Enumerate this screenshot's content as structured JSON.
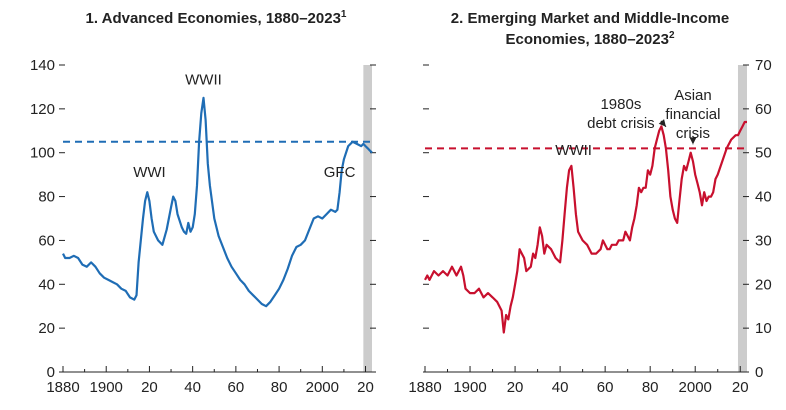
{
  "chart_data": [
    {
      "type": "line",
      "title": "1. Advanced Economies, 1880–2023",
      "title_sup": "1",
      "xlabel": "",
      "ylabel": "",
      "xlim": [
        1880,
        2023
      ],
      "ylim": [
        0,
        140
      ],
      "x_ticks": [
        1880,
        1900,
        1920,
        1940,
        1960,
        1980,
        2000,
        2020
      ],
      "x_tick_labels": [
        "1880",
        "1900",
        "20",
        "40",
        "60",
        "80",
        "2000",
        "20"
      ],
      "y_ticks": [
        0,
        20,
        40,
        60,
        80,
        100,
        120,
        140
      ],
      "y_tick_labels": [
        "0",
        "20",
        "40",
        "60",
        "80",
        "100",
        "120",
        "140"
      ],
      "y_axis": "left",
      "grid": false,
      "line_color": "#1f6db5",
      "reference_line": {
        "value": 105,
        "color": "#1f6db5",
        "style": "dashed"
      },
      "shaded_region": {
        "from": 2019,
        "to": 2023,
        "color": "#cccccc"
      },
      "annotations": [
        {
          "text": "WWI",
          "x": 1920,
          "y": 89
        },
        {
          "text": "WWII",
          "x": 1945,
          "y": 131
        },
        {
          "text": "GFC",
          "x": 2008,
          "y": 89
        }
      ],
      "series": [
        {
          "values": [
            [
              1880,
              54
            ],
            [
              1881,
              52
            ],
            [
              1883,
              52
            ],
            [
              1885,
              53
            ],
            [
              1887,
              52
            ],
            [
              1889,
              49
            ],
            [
              1891,
              48
            ],
            [
              1893,
              50
            ],
            [
              1895,
              48
            ],
            [
              1897,
              45
            ],
            [
              1899,
              43
            ],
            [
              1901,
              42
            ],
            [
              1903,
              41
            ],
            [
              1905,
              40
            ],
            [
              1907,
              38
            ],
            [
              1909,
              37
            ],
            [
              1911,
              34
            ],
            [
              1913,
              33
            ],
            [
              1914,
              35
            ],
            [
              1915,
              50
            ],
            [
              1916,
              60
            ],
            [
              1917,
              70
            ],
            [
              1918,
              78
            ],
            [
              1919,
              82
            ],
            [
              1920,
              78
            ],
            [
              1921,
              70
            ],
            [
              1922,
              64
            ],
            [
              1924,
              60
            ],
            [
              1926,
              58
            ],
            [
              1928,
              65
            ],
            [
              1930,
              75
            ],
            [
              1931,
              80
            ],
            [
              1932,
              78
            ],
            [
              1933,
              72
            ],
            [
              1935,
              66
            ],
            [
              1936,
              64
            ],
            [
              1937,
              63
            ],
            [
              1938,
              68
            ],
            [
              1939,
              64
            ],
            [
              1940,
              66
            ],
            [
              1941,
              72
            ],
            [
              1942,
              85
            ],
            [
              1943,
              105
            ],
            [
              1944,
              118
            ],
            [
              1945,
              125
            ],
            [
              1946,
              115
            ],
            [
              1947,
              95
            ],
            [
              1948,
              85
            ],
            [
              1950,
              70
            ],
            [
              1952,
              62
            ],
            [
              1954,
              57
            ],
            [
              1956,
              52
            ],
            [
              1958,
              48
            ],
            [
              1960,
              45
            ],
            [
              1962,
              42
            ],
            [
              1964,
              40
            ],
            [
              1966,
              37
            ],
            [
              1968,
              35
            ],
            [
              1970,
              33
            ],
            [
              1972,
              31
            ],
            [
              1974,
              30
            ],
            [
              1976,
              32
            ],
            [
              1978,
              35
            ],
            [
              1980,
              38
            ],
            [
              1982,
              42
            ],
            [
              1984,
              47
            ],
            [
              1986,
              53
            ],
            [
              1988,
              57
            ],
            [
              1990,
              58
            ],
            [
              1992,
              60
            ],
            [
              1994,
              65
            ],
            [
              1996,
              70
            ],
            [
              1998,
              71
            ],
            [
              2000,
              70
            ],
            [
              2002,
              72
            ],
            [
              2004,
              74
            ],
            [
              2006,
              73
            ],
            [
              2007,
              74
            ],
            [
              2008,
              82
            ],
            [
              2009,
              92
            ],
            [
              2010,
              97
            ],
            [
              2012,
              103
            ],
            [
              2014,
              105
            ],
            [
              2016,
              104
            ],
            [
              2018,
              103
            ],
            [
              2019,
              104
            ],
            [
              2020,
              103
            ],
            [
              2021,
              102
            ],
            [
              2022,
              101
            ],
            [
              2023,
              100
            ]
          ]
        }
      ]
    },
    {
      "type": "line",
      "title": "2. Emerging Market and Middle-Income Economies, 1880–2023",
      "title_line1": "2. Emerging Market and Middle-Income",
      "title_line2": "Economies, 1880–2023",
      "title_sup": "2",
      "xlabel": "",
      "ylabel": "",
      "xlim": [
        1880,
        2023
      ],
      "ylim": [
        0,
        70
      ],
      "x_ticks": [
        1880,
        1900,
        1920,
        1940,
        1960,
        1980,
        2000,
        2020
      ],
      "x_tick_labels": [
        "1880",
        "1900",
        "20",
        "40",
        "60",
        "80",
        "2000",
        "20"
      ],
      "y_ticks": [
        0,
        10,
        20,
        30,
        40,
        50,
        60,
        70
      ],
      "y_tick_labels": [
        "0",
        "10",
        "20",
        "30",
        "40",
        "50",
        "60",
        "70"
      ],
      "y_axis": "right",
      "grid": false,
      "line_color": "#c8102e",
      "reference_line": {
        "value": 51,
        "color": "#c8102e",
        "style": "dashed"
      },
      "shaded_region": {
        "from": 2019,
        "to": 2023,
        "color": "#cccccc"
      },
      "annotations": [
        {
          "text": "WWII",
          "x": 1946,
          "y": 49.5,
          "lines": [
            "WWII"
          ]
        },
        {
          "text": "1980s debt crisis",
          "x": 1967,
          "y": 60,
          "lines": [
            "1980s",
            "debt crisis"
          ],
          "arrow_to": [
            1987,
            55
          ]
        },
        {
          "text": "Asian financial crisis",
          "x": 1999,
          "y": 62,
          "lines": [
            "Asian",
            "financial",
            "crisis"
          ],
          "arrow_to": [
            1999,
            51
          ]
        }
      ],
      "series": [
        {
          "values": [
            [
              1880,
              21
            ],
            [
              1881,
              22
            ],
            [
              1882,
              21
            ],
            [
              1884,
              23
            ],
            [
              1886,
              22
            ],
            [
              1888,
              23
            ],
            [
              1890,
              22
            ],
            [
              1892,
              24
            ],
            [
              1894,
              22
            ],
            [
              1896,
              24
            ],
            [
              1897,
              22
            ],
            [
              1898,
              19
            ],
            [
              1900,
              18
            ],
            [
              1902,
              18
            ],
            [
              1904,
              19
            ],
            [
              1906,
              17
            ],
            [
              1908,
              18
            ],
            [
              1910,
              17
            ],
            [
              1912,
              16
            ],
            [
              1914,
              14
            ],
            [
              1915,
              9
            ],
            [
              1916,
              13
            ],
            [
              1917,
              12
            ],
            [
              1918,
              15
            ],
            [
              1919,
              17
            ],
            [
              1920,
              20
            ],
            [
              1921,
              23
            ],
            [
              1922,
              28
            ],
            [
              1923,
              27
            ],
            [
              1924,
              26
            ],
            [
              1925,
              23
            ],
            [
              1927,
              24
            ],
            [
              1928,
              27
            ],
            [
              1929,
              26
            ],
            [
              1930,
              29
            ],
            [
              1931,
              33
            ],
            [
              1932,
              31
            ],
            [
              1933,
              27
            ],
            [
              1934,
              29
            ],
            [
              1936,
              28
            ],
            [
              1938,
              26
            ],
            [
              1940,
              25
            ],
            [
              1941,
              30
            ],
            [
              1942,
              36
            ],
            [
              1943,
              42
            ],
            [
              1944,
              46
            ],
            [
              1945,
              47
            ],
            [
              1946,
              42
            ],
            [
              1947,
              36
            ],
            [
              1948,
              32
            ],
            [
              1950,
              30
            ],
            [
              1952,
              29
            ],
            [
              1953,
              28
            ],
            [
              1954,
              27
            ],
            [
              1955,
              27
            ],
            [
              1956,
              27
            ],
            [
              1958,
              28
            ],
            [
              1959,
              30
            ],
            [
              1960,
              29
            ],
            [
              1961,
              28
            ],
            [
              1962,
              28
            ],
            [
              1963,
              29
            ],
            [
              1965,
              29
            ],
            [
              1966,
              30
            ],
            [
              1968,
              30
            ],
            [
              1969,
              32
            ],
            [
              1970,
              31
            ],
            [
              1971,
              30
            ],
            [
              1972,
              33
            ],
            [
              1973,
              35
            ],
            [
              1974,
              38
            ],
            [
              1975,
              42
            ],
            [
              1976,
              41
            ],
            [
              1977,
              42
            ],
            [
              1978,
              42
            ],
            [
              1979,
              46
            ],
            [
              1980,
              45
            ],
            [
              1981,
              47
            ],
            [
              1982,
              51
            ],
            [
              1983,
              53
            ],
            [
              1984,
              55
            ],
            [
              1985,
              56
            ],
            [
              1986,
              54
            ],
            [
              1987,
              51
            ],
            [
              1988,
              46
            ],
            [
              1989,
              40
            ],
            [
              1990,
              37
            ],
            [
              1991,
              35
            ],
            [
              1992,
              34
            ],
            [
              1993,
              39
            ],
            [
              1994,
              44
            ],
            [
              1995,
              47
            ],
            [
              1996,
              46
            ],
            [
              1997,
              48
            ],
            [
              1998,
              50
            ],
            [
              1999,
              48
            ],
            [
              2000,
              45
            ],
            [
              2001,
              43
            ],
            [
              2002,
              41
            ],
            [
              2003,
              38
            ],
            [
              2004,
              41
            ],
            [
              2005,
              39
            ],
            [
              2006,
              40
            ],
            [
              2007,
              40
            ],
            [
              2008,
              41
            ],
            [
              2009,
              44
            ],
            [
              2010,
              45
            ],
            [
              2012,
              48
            ],
            [
              2014,
              51
            ],
            [
              2016,
              53
            ],
            [
              2018,
              54
            ],
            [
              2019,
              54
            ],
            [
              2020,
              55
            ],
            [
              2021,
              56
            ],
            [
              2022,
              57
            ],
            [
              2023,
              57
            ]
          ]
        }
      ]
    }
  ]
}
